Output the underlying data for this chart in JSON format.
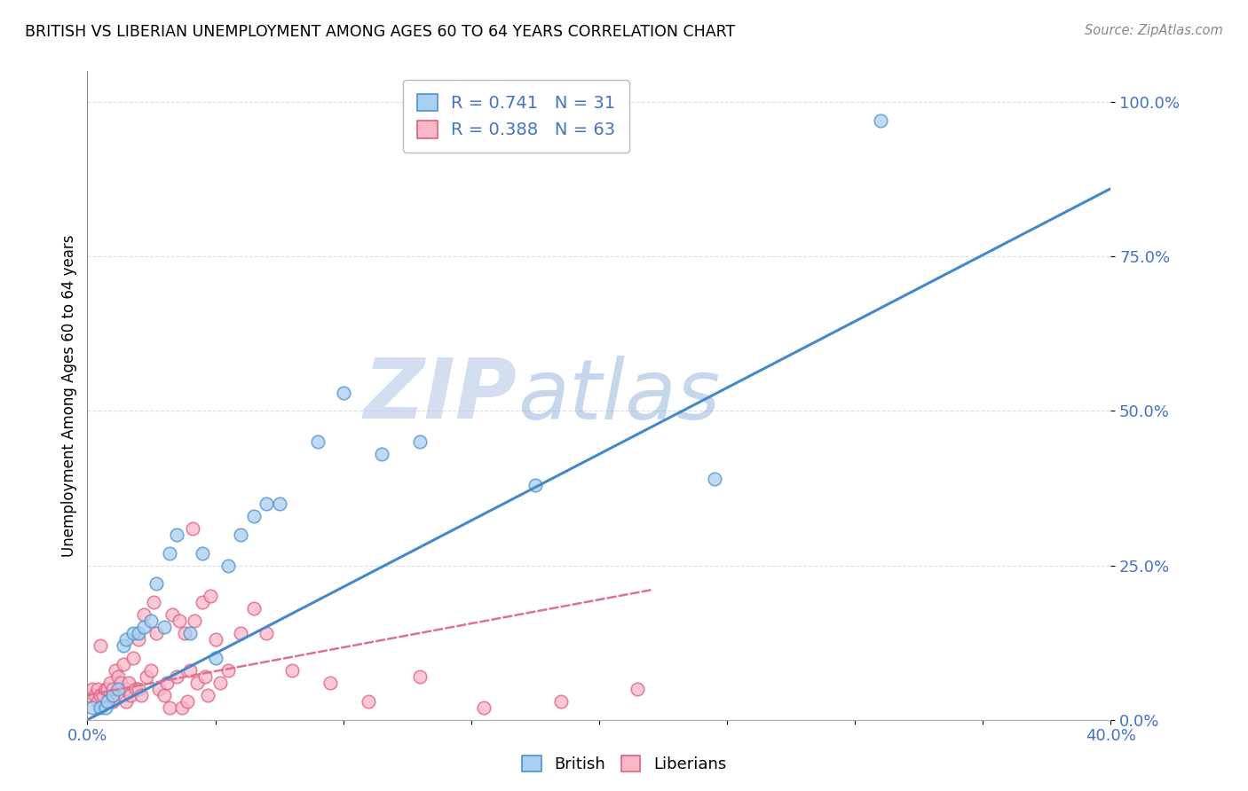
{
  "title": "BRITISH VS LIBERIAN UNEMPLOYMENT AMONG AGES 60 TO 64 YEARS CORRELATION CHART",
  "source": "Source: ZipAtlas.com",
  "ylabel": "Unemployment Among Ages 60 to 64 years",
  "xlim": [
    0.0,
    0.4
  ],
  "ylim": [
    0.0,
    1.05
  ],
  "yticks": [
    0.0,
    0.25,
    0.5,
    0.75,
    1.0
  ],
  "ytick_labels": [
    "0.0%",
    "25.0%",
    "50.0%",
    "75.0%",
    "100.0%"
  ],
  "xticks": [
    0.0,
    0.05,
    0.1,
    0.15,
    0.2,
    0.25,
    0.3,
    0.35,
    0.4
  ],
  "xtick_labels": [
    "0.0%",
    "",
    "",
    "",
    "",
    "",
    "",
    "",
    "40.0%"
  ],
  "british_R": 0.741,
  "british_N": 31,
  "liberian_R": 0.388,
  "liberian_N": 63,
  "british_color": "#A8D0F0",
  "liberian_color": "#F8B8C8",
  "british_edge_color": "#5090D0",
  "liberian_edge_color": "#E06080",
  "british_line_color": "#4488CC",
  "liberian_line_color": "#E07090",
  "watermark_zip": "ZIP",
  "watermark_atlas": "atlas",
  "watermark_color": "#C8D8F0",
  "tick_color": "#4472C4",
  "grid_color": "#D8DFF0",
  "british_x": [
    0.002,
    0.005,
    0.007,
    0.008,
    0.01,
    0.012,
    0.014,
    0.015,
    0.018,
    0.02,
    0.022,
    0.025,
    0.027,
    0.03,
    0.032,
    0.035,
    0.04,
    0.045,
    0.05,
    0.055,
    0.06,
    0.065,
    0.07,
    0.075,
    0.09,
    0.1,
    0.115,
    0.13,
    0.175,
    0.245,
    0.31
  ],
  "british_y": [
    0.02,
    0.02,
    0.02,
    0.03,
    0.04,
    0.05,
    0.12,
    0.13,
    0.14,
    0.14,
    0.15,
    0.16,
    0.22,
    0.15,
    0.27,
    0.3,
    0.14,
    0.27,
    0.1,
    0.25,
    0.3,
    0.33,
    0.35,
    0.35,
    0.45,
    0.53,
    0.43,
    0.45,
    0.38,
    0.39,
    0.97
  ],
  "liberian_x": [
    0.001,
    0.002,
    0.003,
    0.004,
    0.004,
    0.005,
    0.005,
    0.006,
    0.007,
    0.008,
    0.009,
    0.01,
    0.01,
    0.01,
    0.011,
    0.012,
    0.013,
    0.014,
    0.015,
    0.015,
    0.016,
    0.017,
    0.018,
    0.019,
    0.02,
    0.02,
    0.021,
    0.022,
    0.023,
    0.025,
    0.026,
    0.027,
    0.028,
    0.03,
    0.031,
    0.032,
    0.033,
    0.035,
    0.036,
    0.037,
    0.038,
    0.039,
    0.04,
    0.041,
    0.042,
    0.043,
    0.045,
    0.046,
    0.047,
    0.048,
    0.05,
    0.052,
    0.055,
    0.06,
    0.065,
    0.07,
    0.08,
    0.095,
    0.11,
    0.13,
    0.155,
    0.185,
    0.215
  ],
  "liberian_y": [
    0.04,
    0.05,
    0.04,
    0.03,
    0.05,
    0.04,
    0.12,
    0.04,
    0.05,
    0.05,
    0.06,
    0.03,
    0.04,
    0.05,
    0.08,
    0.07,
    0.06,
    0.09,
    0.03,
    0.05,
    0.06,
    0.04,
    0.1,
    0.05,
    0.13,
    0.05,
    0.04,
    0.17,
    0.07,
    0.08,
    0.19,
    0.14,
    0.05,
    0.04,
    0.06,
    0.02,
    0.17,
    0.07,
    0.16,
    0.02,
    0.14,
    0.03,
    0.08,
    0.31,
    0.16,
    0.06,
    0.19,
    0.07,
    0.04,
    0.2,
    0.13,
    0.06,
    0.08,
    0.14,
    0.18,
    0.14,
    0.08,
    0.06,
    0.03,
    0.07,
    0.02,
    0.03,
    0.05
  ],
  "british_line_x0": 0.0,
  "british_line_y0": 0.0,
  "british_line_x1": 0.4,
  "british_line_y1": 0.86,
  "liberian_line_x0": 0.0,
  "liberian_line_y0": 0.04,
  "liberian_line_x1": 0.22,
  "liberian_line_y1": 0.21
}
